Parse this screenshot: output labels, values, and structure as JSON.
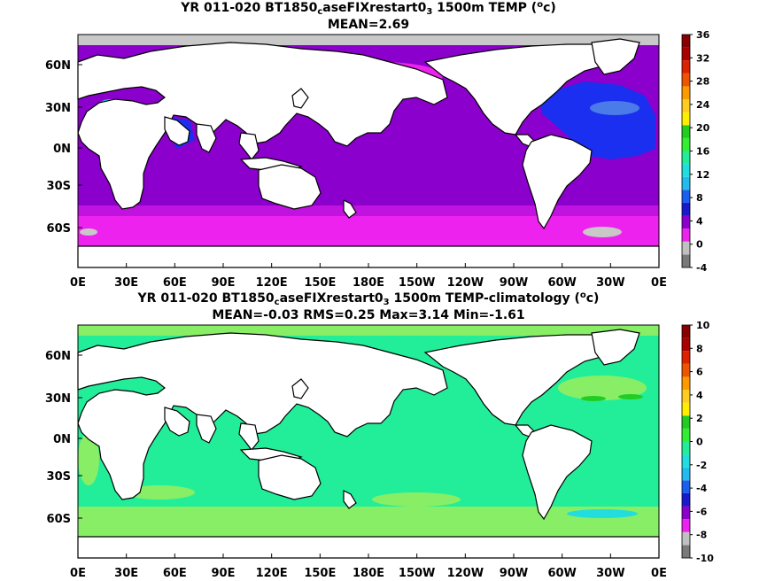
{
  "panels": [
    {
      "title": {
        "prefix": "YR 011-020 BT1850",
        "sub1": "c",
        "mid": "aseFIXrestart0",
        "sub2": "3",
        "suffix_pre": " 1500m TEMP (",
        "sup": "o",
        "suffix_post": "c)"
      },
      "stats": "MEAN=2.69",
      "colorbar_ticks": [
        "36",
        "32",
        "28",
        "24",
        "20",
        "16",
        "12",
        "8",
        "4",
        "0",
        "-4"
      ],
      "colors": {
        "ocean_main": "#8b00cc",
        "southern": "#ee22ee",
        "north_pacific": "#ee22ee",
        "atlantic": "#1a2ff0",
        "atlantic_light": "#4a7be8",
        "indian_nw": "#1a2ff0",
        "med": "#22dddd",
        "missing": "#c8c8c8",
        "land": "#ffffff"
      }
    },
    {
      "title": {
        "prefix": "YR 011-020 BT1850",
        "sub1": "c",
        "mid": "aseFIXrestart0",
        "sub2": "3",
        "suffix_pre": " 1500m TEMP-climatology (",
        "sup": "o",
        "suffix_post": "c)"
      },
      "stats": "MEAN=-0.03   RMS=0.25   Max=3.14   Min=-1.61",
      "colorbar_ticks": [
        "10",
        "8",
        "6",
        "4",
        "2",
        "0",
        "-2",
        "-4",
        "-6",
        "-8",
        "-10"
      ],
      "colors": {
        "ocean_main": "#22ee99",
        "light": "#88ee66",
        "bright": "#22cc22",
        "cyan": "#22dddd",
        "land": "#ffffff"
      }
    }
  ],
  "axes": {
    "lat_labels": [
      "60N",
      "30N",
      "0N",
      "30S",
      "60S"
    ],
    "lon_labels": [
      "0E",
      "30E",
      "60E",
      "90E",
      "120E",
      "150E",
      "180E",
      "150W",
      "120W",
      "90W",
      "60W",
      "30W",
      "0E"
    ]
  },
  "colorbar_colors": [
    "#7a7a7a",
    "#c0c0c0",
    "#ee22ee",
    "#8b00cc",
    "#1a1acc",
    "#1a5ff0",
    "#22bbee",
    "#22dddd",
    "#22ee99",
    "#33ee33",
    "#22cc22",
    "#ffee00",
    "#ffcc22",
    "#ff9900",
    "#ee5500",
    "#dd2200",
    "#aa0000",
    "#880000"
  ]
}
